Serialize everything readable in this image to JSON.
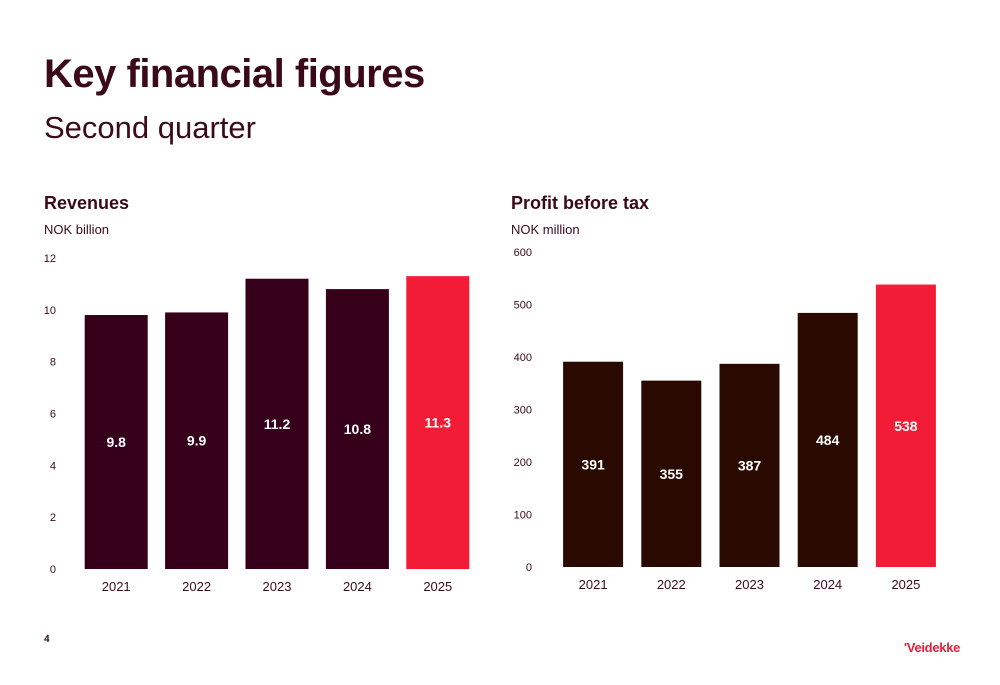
{
  "page": {
    "title": "Key financial figures",
    "subtitle": "Second quarter",
    "page_number": "4",
    "logo": "'Veidekke"
  },
  "colors": {
    "text": "#3a0a1a",
    "accent": "#f21c37",
    "bar_revenue": "#36001a",
    "bar_profit": "#2a0a00"
  },
  "chart_data": [
    {
      "type": "bar",
      "title": "Revenues",
      "ylabel": "NOK billion",
      "xlabel": "",
      "categories": [
        "2021",
        "2022",
        "2023",
        "2024",
        "2025"
      ],
      "values": [
        9.8,
        9.9,
        11.2,
        10.8,
        11.3
      ],
      "data_labels": [
        "9.8",
        "9.9",
        "11.2",
        "10.8",
        "11.3"
      ],
      "highlight_index": 4,
      "ylim": [
        0,
        12
      ],
      "yticks": [
        0,
        2,
        4,
        6,
        8,
        10,
        12
      ],
      "grid": false,
      "legend": "none"
    },
    {
      "type": "bar",
      "title": "Profit before tax",
      "ylabel": "NOK million",
      "xlabel": "",
      "categories": [
        "2021",
        "2022",
        "2023",
        "2024",
        "2025"
      ],
      "values": [
        391,
        355,
        387,
        484,
        538
      ],
      "data_labels": [
        "391",
        "355",
        "387",
        "484",
        "538"
      ],
      "highlight_index": 4,
      "ylim": [
        0,
        600
      ],
      "yticks": [
        0,
        100,
        200,
        300,
        400,
        500,
        600
      ],
      "grid": false,
      "legend": "none"
    }
  ]
}
